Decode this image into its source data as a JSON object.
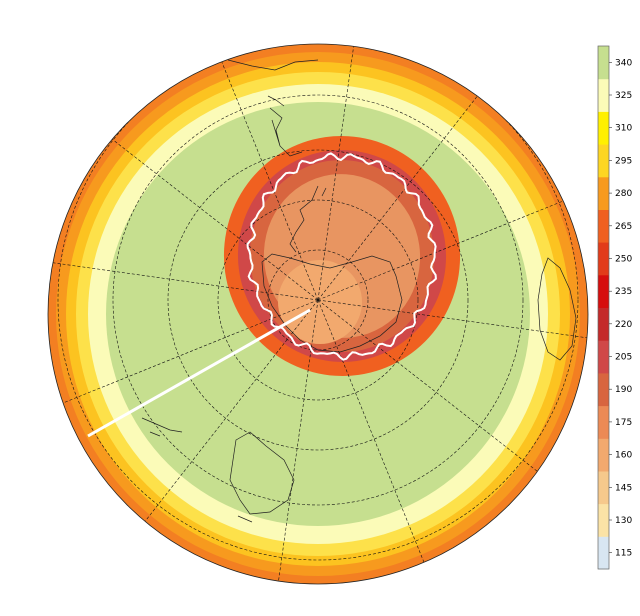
{
  "legend": {
    "ticks": [
      {
        "value": "115",
        "color": "#d8e6f2"
      },
      {
        "value": "130",
        "color": "#fbe3a6"
      },
      {
        "value": "145",
        "color": "#f6c98c"
      },
      {
        "value": "160",
        "color": "#f2a96e"
      },
      {
        "value": "175",
        "color": "#ec8a55"
      },
      {
        "value": "190",
        "color": "#d8653f"
      },
      {
        "value": "205",
        "color": "#d04848"
      },
      {
        "value": "220",
        "color": "#c42a2a"
      },
      {
        "value": "235",
        "color": "#d60e0e"
      },
      {
        "value": "250",
        "color": "#e23b1a"
      },
      {
        "value": "265",
        "color": "#f06020"
      },
      {
        "value": "280",
        "color": "#f79a1e"
      },
      {
        "value": "295",
        "color": "#fdd622"
      },
      {
        "value": "310",
        "color": "#fff000"
      },
      {
        "value": "325",
        "color": "#fbfbb8"
      },
      {
        "value": "340",
        "color": "#c6df8f"
      }
    ]
  },
  "map": {
    "projection": "south-polar-stereographic",
    "contour_color": "#ffffff",
    "background": "#ffffff",
    "rings": [
      {
        "color": "#f37f22"
      },
      {
        "color": "#f79a1e"
      },
      {
        "color": "#fcc320"
      },
      {
        "color": "#fde14a"
      },
      {
        "color": "#fbfbb8"
      },
      {
        "color": "#c6df8f"
      }
    ],
    "hole": {
      "outer_color": "#d04848",
      "mid_color": "#d8653f",
      "inner_color": "#e89561",
      "core_color": "#f2a96e",
      "rim_color": "#f06020"
    }
  }
}
